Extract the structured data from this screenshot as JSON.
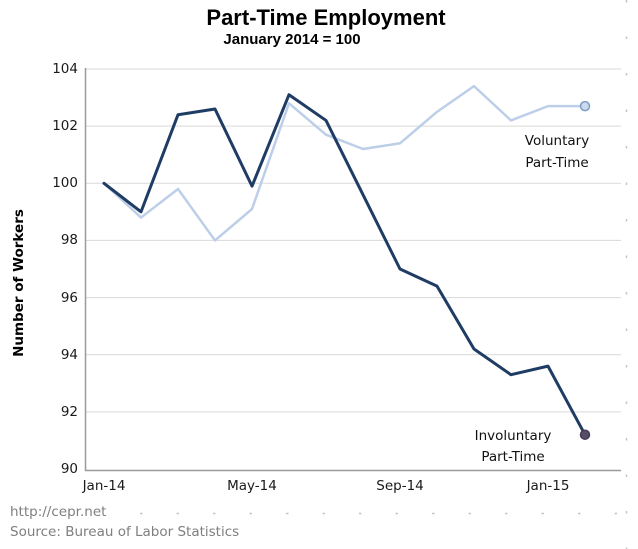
{
  "header": {
    "title": "Part-Time Employment",
    "subtitle": "January 2014 = 100"
  },
  "footer": {
    "line1": "http://cepr.net",
    "line2": "Source: Bureau of Labor Statistics"
  },
  "chart_data": {
    "type": "line",
    "title": "Part-Time Employment",
    "subtitle": "January 2014 = 100",
    "xlabel": "",
    "ylabel": "Number of Workers",
    "ylim": [
      90,
      104
    ],
    "yticks": [
      90,
      92,
      94,
      96,
      98,
      100,
      102,
      104
    ],
    "grid": true,
    "legend_position": "inline-annotations",
    "x": [
      "Jan-14",
      "Feb-14",
      "Mar-14",
      "Apr-14",
      "May-14",
      "Jun-14",
      "Jul-14",
      "Aug-14",
      "Sep-14",
      "Oct-14",
      "Nov-14",
      "Dec-14",
      "Jan-15",
      "Feb-15"
    ],
    "xtick_labels": [
      "Jan-14",
      "May-14",
      "Sep-14",
      "Jan-15"
    ],
    "xtick_indices": [
      0,
      4,
      8,
      12
    ],
    "series": [
      {
        "name": "Voluntary Part-Time",
        "label_lines": [
          "Voluntary",
          "Part-Time"
        ],
        "color": "#bdcfe8",
        "line_width": 2.5,
        "end_marker": {
          "shape": "circle-open",
          "stroke": "#7b9cc7",
          "fill": "#ccd9ee"
        },
        "values": [
          100.0,
          98.8,
          99.8,
          98.0,
          99.1,
          102.8,
          101.7,
          101.2,
          101.4,
          102.5,
          103.4,
          102.2,
          102.7,
          102.7
        ]
      },
      {
        "name": "Involuntary Part-Time",
        "label_lines": [
          "Involuntary",
          "Part-Time"
        ],
        "color": "#1f3c64",
        "line_width": 3,
        "end_marker": {
          "shape": "circle-filled",
          "stroke": "#453c55",
          "fill": "#574d68"
        },
        "values": [
          100.0,
          99.0,
          102.4,
          102.6,
          99.9,
          103.1,
          102.2,
          99.6,
          97.0,
          96.4,
          94.2,
          93.3,
          93.6,
          91.2
        ]
      }
    ],
    "colors": {
      "gridline": "#d9d9d9",
      "axis": "#9a9a9a",
      "pagebreak_dots": "#bfc3cc"
    }
  }
}
